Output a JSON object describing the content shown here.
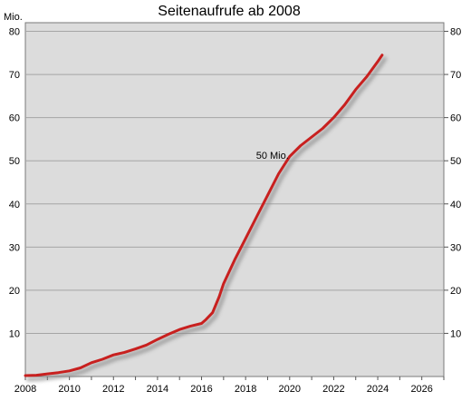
{
  "chart_data": {
    "type": "line",
    "title": "Seitenaufrufe ab 2008",
    "ylabel": "Mio.",
    "xlabel": "",
    "xlim": [
      2008,
      2027
    ],
    "ylim": [
      0,
      82
    ],
    "x_ticks": [
      "2008",
      "2010",
      "2012",
      "2014",
      "2016",
      "2018",
      "2020",
      "2022",
      "2024",
      "2026"
    ],
    "y_ticks": [
      "10",
      "20",
      "30",
      "40",
      "50",
      "60",
      "70",
      "80"
    ],
    "grid": true,
    "legend": "none",
    "annotations": [
      {
        "text": "50 Mio.",
        "x": 2020.0,
        "y": 50
      }
    ],
    "series": [
      {
        "color": "#c8201f",
        "x": [
          2008.0,
          2008.5,
          2009.0,
          2009.5,
          2010.0,
          2010.5,
          2011.0,
          2011.5,
          2012.0,
          2012.5,
          2013.0,
          2013.5,
          2014.0,
          2014.5,
          2015.0,
          2015.5,
          2016.0,
          2016.2,
          2016.5,
          2016.8,
          2017.0,
          2017.5,
          2018.0,
          2018.5,
          2019.0,
          2019.5,
          2020.0,
          2020.5,
          2021.0,
          2021.5,
          2022.0,
          2022.5,
          2023.0,
          2023.5,
          2024.0,
          2024.2
        ],
        "y": [
          0.2,
          0.3,
          0.6,
          0.9,
          1.3,
          2.0,
          3.2,
          4.0,
          5.0,
          5.6,
          6.4,
          7.3,
          8.6,
          9.8,
          10.9,
          11.7,
          12.3,
          13.2,
          14.8,
          18.5,
          21.5,
          27.0,
          32.0,
          37.0,
          42.0,
          47.0,
          51.0,
          53.5,
          55.5,
          57.5,
          60.0,
          63.0,
          66.5,
          69.5,
          73.0,
          74.5
        ]
      }
    ]
  }
}
